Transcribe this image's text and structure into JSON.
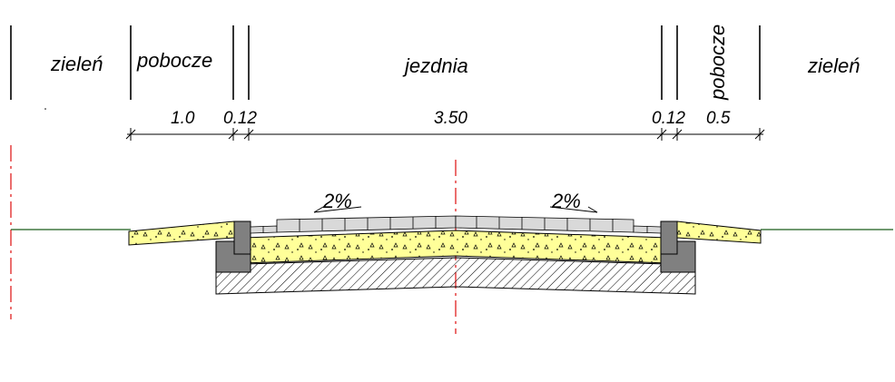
{
  "zones": {
    "left_green": "zieleń",
    "left_shoulder": "pobocze",
    "roadway": "jezdnia",
    "right_shoulder": "pobocze",
    "right_green": "zieleń"
  },
  "dimensions": {
    "left_shoulder": "1.0",
    "left_curb": "0.12",
    "roadway": "3.50",
    "right_curb": "0.12",
    "right_shoulder": "0.5"
  },
  "slopes": {
    "left": "2%",
    "right": "2%"
  },
  "colors": {
    "base_fill": "#ffff99",
    "shoulder_fill": "#ffff99",
    "curb_fill": "#808080",
    "paving_fill": "#d9d9d9",
    "ground_line": "#1a5c1a",
    "axis_line": "#e02020"
  }
}
